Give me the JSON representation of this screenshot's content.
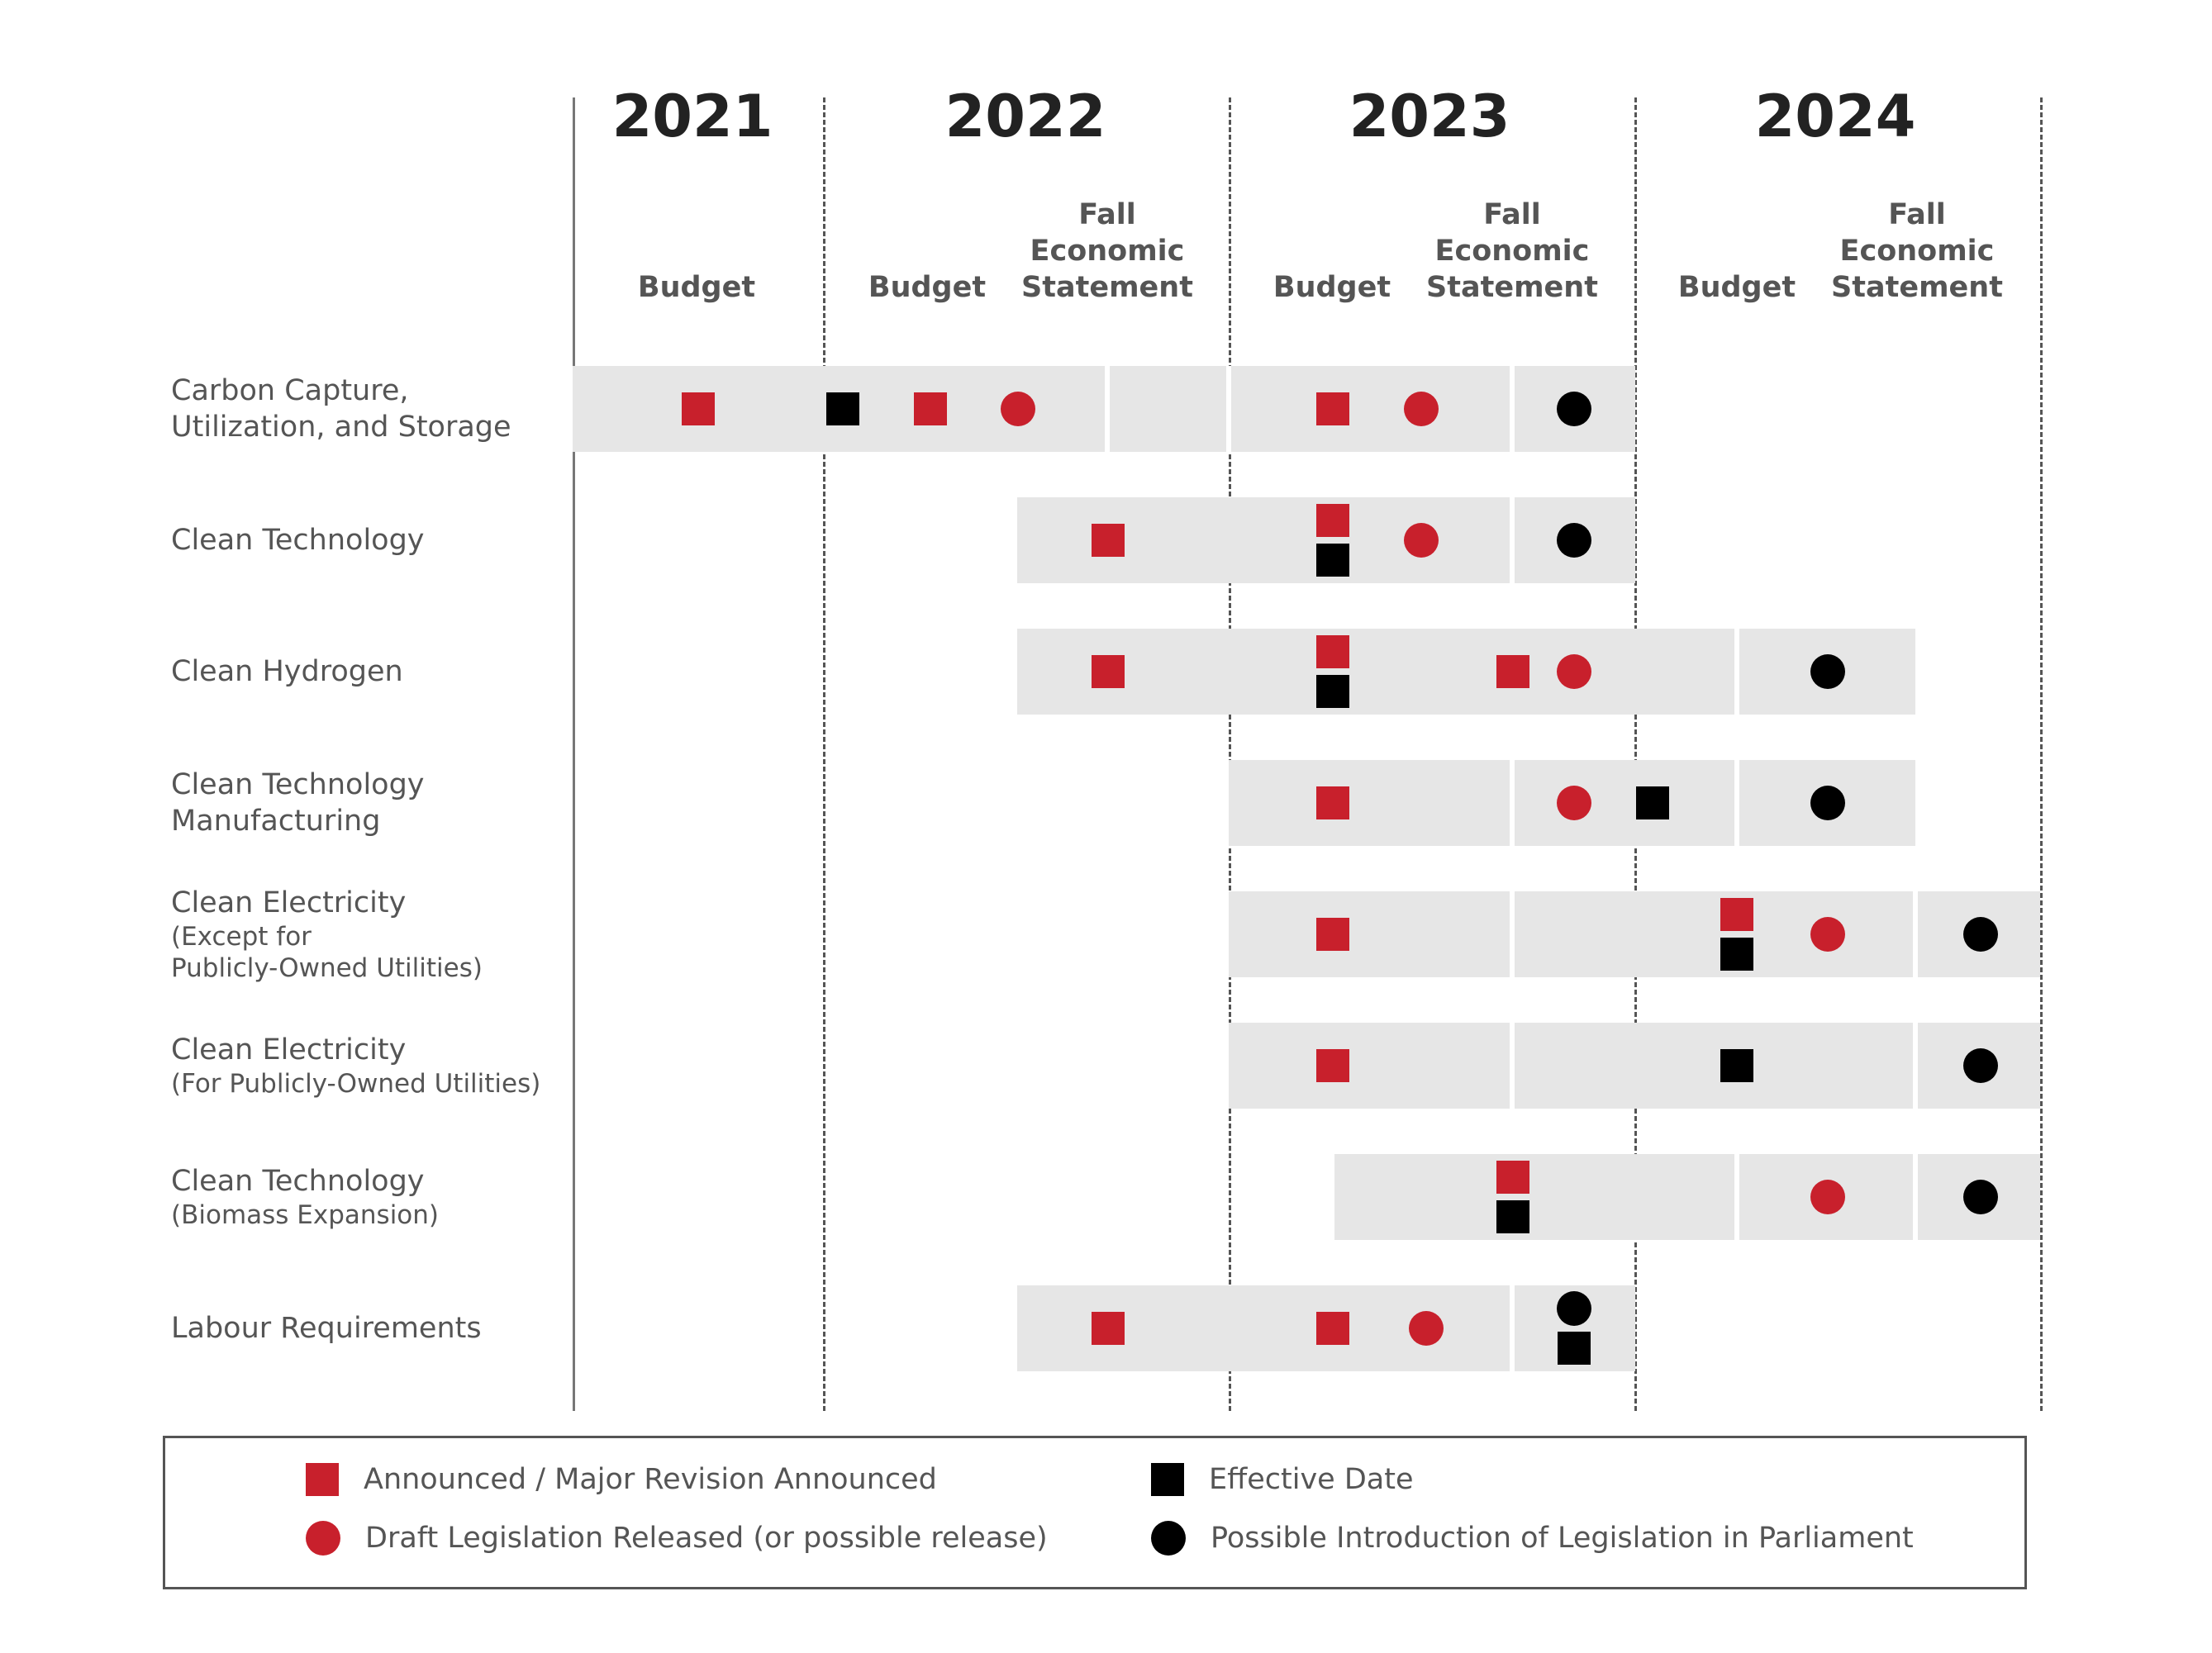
{
  "years": [
    "2021",
    "2022",
    "2023",
    "2024"
  ],
  "milestones": [
    {
      "year": "2021",
      "label": "Budget"
    },
    {
      "year": "2022",
      "label": "Budget"
    },
    {
      "year": "2022",
      "label": "Fall\nEconomic\nStatement"
    },
    {
      "year": "2023",
      "label": "Budget"
    },
    {
      "year": "2023",
      "label": "Fall\nEconomic\nStatement"
    },
    {
      "year": "2024",
      "label": "Budget"
    },
    {
      "year": "2024",
      "label": "Fall\nEconomic\nStatement"
    }
  ],
  "rows": [
    {
      "label": "Carbon Capture,\nUtilization, and Storage",
      "sublabel": "",
      "span": [
        "2021 Budget",
        "2023 Fall Economic Statement"
      ],
      "events": [
        {
          "milestone": "2021 Budget",
          "stack": [
            {
              "shape": "square",
              "color": "red"
            }
          ]
        },
        {
          "milestone": "2021–2022 boundary",
          "stack": [
            {
              "shape": "square",
              "color": "black"
            }
          ]
        },
        {
          "milestone": "2022 Budget",
          "stack": [
            {
              "shape": "square",
              "color": "red"
            }
          ]
        },
        {
          "milestone": "after 2022 Budget",
          "stack": [
            {
              "shape": "circle",
              "color": "red"
            }
          ]
        },
        {
          "milestone": "2023 Budget",
          "stack": [
            {
              "shape": "square",
              "color": "red"
            }
          ]
        },
        {
          "milestone": "after 2023 Budget",
          "stack": [
            {
              "shape": "circle",
              "color": "red"
            }
          ]
        },
        {
          "milestone": "after 2023 Fall Economic Statement",
          "stack": [
            {
              "shape": "circle",
              "color": "black"
            }
          ]
        }
      ]
    },
    {
      "label": "Clean Technology",
      "sublabel": "",
      "span": [
        "2022 Fall Economic Statement",
        "2023 Fall Economic Statement"
      ],
      "events": [
        {
          "milestone": "2022 Fall Economic Statement",
          "stack": [
            {
              "shape": "square",
              "color": "red"
            }
          ]
        },
        {
          "milestone": "2023 Budget",
          "stack": [
            {
              "shape": "square",
              "color": "red"
            },
            {
              "shape": "square",
              "color": "black"
            }
          ]
        },
        {
          "milestone": "after 2023 Budget",
          "stack": [
            {
              "shape": "circle",
              "color": "red"
            }
          ]
        },
        {
          "milestone": "after 2023 Fall Economic Statement",
          "stack": [
            {
              "shape": "circle",
              "color": "black"
            }
          ]
        }
      ]
    },
    {
      "label": "Clean Hydrogen",
      "sublabel": "",
      "span": [
        "2022 Fall Economic Statement",
        "2024 Fall Economic Statement"
      ],
      "events": [
        {
          "milestone": "2022 Fall Economic Statement",
          "stack": [
            {
              "shape": "square",
              "color": "red"
            }
          ]
        },
        {
          "milestone": "2023 Budget",
          "stack": [
            {
              "shape": "square",
              "color": "red"
            },
            {
              "shape": "square",
              "color": "black"
            }
          ]
        },
        {
          "milestone": "2023 Fall Economic Statement",
          "stack": [
            {
              "shape": "square",
              "color": "red"
            }
          ]
        },
        {
          "milestone": "after 2023 Fall Economic Statement",
          "stack": [
            {
              "shape": "circle",
              "color": "red"
            }
          ]
        },
        {
          "milestone": "after 2024 Budget",
          "stack": [
            {
              "shape": "circle",
              "color": "black"
            }
          ]
        }
      ]
    },
    {
      "label": "Clean Technology\nManufacturing",
      "sublabel": "",
      "span": [
        "2023 Budget",
        "2024 Fall Economic Statement"
      ],
      "events": [
        {
          "milestone": "2023 Budget",
          "stack": [
            {
              "shape": "square",
              "color": "red"
            }
          ]
        },
        {
          "milestone": "after 2023 Fall Economic Statement",
          "stack": [
            {
              "shape": "circle",
              "color": "red"
            }
          ]
        },
        {
          "milestone": "2023–2024 boundary",
          "stack": [
            {
              "shape": "square",
              "color": "black"
            }
          ]
        },
        {
          "milestone": "after 2024 Budget",
          "stack": [
            {
              "shape": "circle",
              "color": "black"
            }
          ]
        }
      ]
    },
    {
      "label": "Clean Electricity",
      "sublabel": "(Except for\nPublicly-Owned Utilities)",
      "span": [
        "2023 Budget",
        "after 2024 Fall Economic Statement"
      ],
      "events": [
        {
          "milestone": "2023 Budget",
          "stack": [
            {
              "shape": "square",
              "color": "red"
            }
          ]
        },
        {
          "milestone": "2024 Budget",
          "stack": [
            {
              "shape": "square",
              "color": "red"
            },
            {
              "shape": "square",
              "color": "black"
            }
          ]
        },
        {
          "milestone": "after 2024 Budget",
          "stack": [
            {
              "shape": "circle",
              "color": "red"
            }
          ]
        },
        {
          "milestone": "after 2024 Fall Economic Statement",
          "stack": [
            {
              "shape": "circle",
              "color": "black"
            }
          ]
        }
      ]
    },
    {
      "label": "Clean Electricity",
      "sublabel": "(For Publicly-Owned Utilities)",
      "span": [
        "2023 Budget",
        "after 2024 Fall Economic Statement"
      ],
      "events": [
        {
          "milestone": "2023 Budget",
          "stack": [
            {
              "shape": "square",
              "color": "red"
            }
          ]
        },
        {
          "milestone": "2024 Budget",
          "stack": [
            {
              "shape": "square",
              "color": "black"
            }
          ]
        },
        {
          "milestone": "after 2024 Fall Economic Statement",
          "stack": [
            {
              "shape": "circle",
              "color": "black"
            }
          ]
        }
      ]
    },
    {
      "label": "Clean Technology",
      "sublabel": "(Biomass Expansion)",
      "span": [
        "2023 Budget",
        "after 2024 Fall Economic Statement"
      ],
      "events": [
        {
          "milestone": "2023 Fall Economic Statement",
          "stack": [
            {
              "shape": "square",
              "color": "red"
            },
            {
              "shape": "square",
              "color": "black"
            }
          ]
        },
        {
          "milestone": "after 2024 Budget",
          "stack": [
            {
              "shape": "circle",
              "color": "red"
            }
          ]
        },
        {
          "milestone": "after 2024 Fall Economic Statement",
          "stack": [
            {
              "shape": "circle",
              "color": "black"
            }
          ]
        }
      ]
    },
    {
      "label": "Labour Requirements",
      "sublabel": "",
      "span": [
        "2022 Fall Economic Statement",
        "2023 Fall Economic Statement"
      ],
      "events": [
        {
          "milestone": "2022 Fall Economic Statement",
          "stack": [
            {
              "shape": "square",
              "color": "red"
            }
          ]
        },
        {
          "milestone": "2023 Budget",
          "stack": [
            {
              "shape": "square",
              "color": "red"
            }
          ]
        },
        {
          "milestone": "after 2023 Budget",
          "stack": [
            {
              "shape": "circle",
              "color": "red"
            }
          ]
        },
        {
          "milestone": "after 2023 Fall Economic Statement",
          "stack": [
            {
              "shape": "circle",
              "color": "black"
            },
            {
              "shape": "square",
              "color": "black"
            }
          ]
        }
      ]
    }
  ],
  "legend": [
    {
      "shape": "square",
      "color": "red",
      "label": "Announced / Major Revision Announced"
    },
    {
      "shape": "square",
      "color": "black",
      "label": "Effective Date"
    },
    {
      "shape": "circle",
      "color": "red",
      "label": "Draft Legislation Released (or possible release)"
    },
    {
      "shape": "circle",
      "color": "black",
      "label": "Possible Introduction of Legislation in Parliament"
    }
  ],
  "colors": {
    "red": "#c8202c",
    "black": "#000000",
    "band": "#e6e6e6",
    "text": "#555555"
  }
}
